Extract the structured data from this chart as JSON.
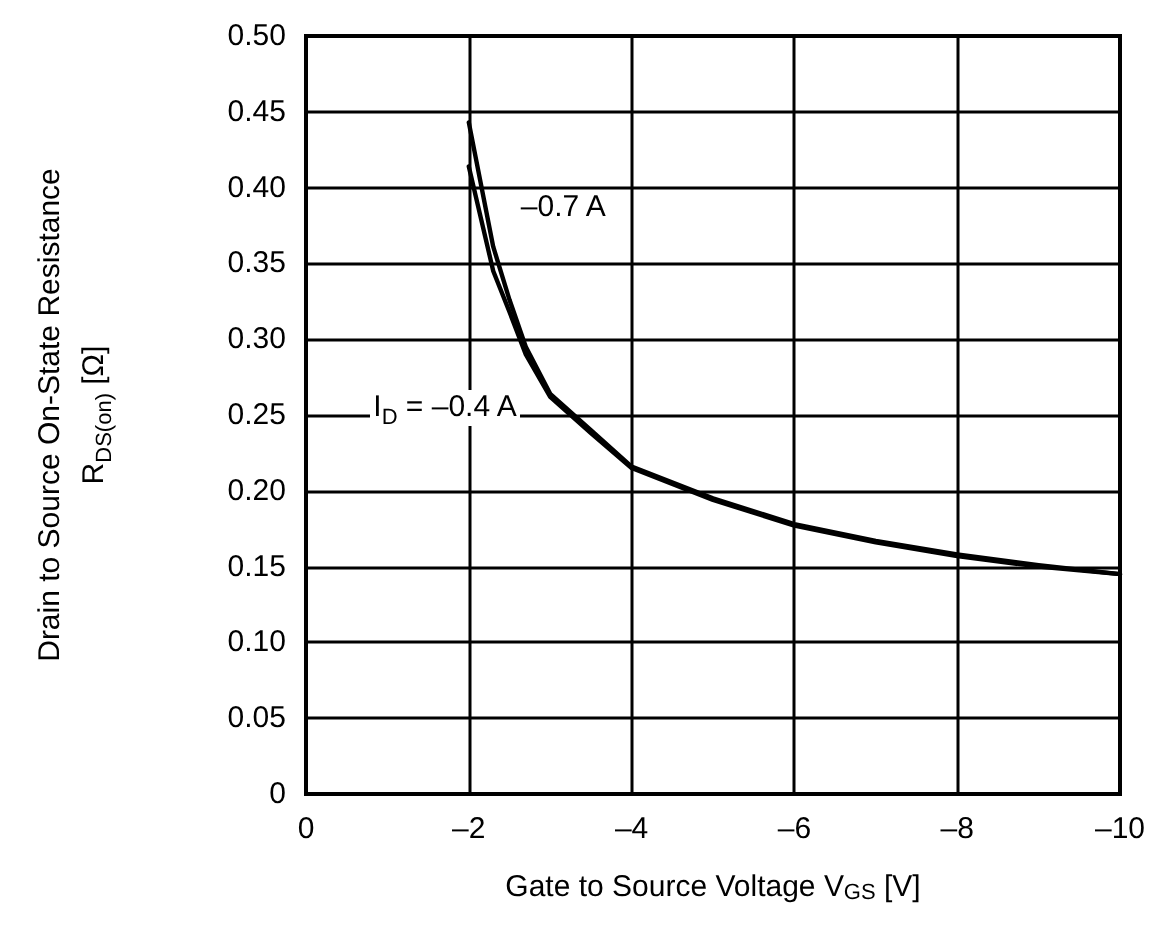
{
  "chart_data": {
    "type": "line",
    "xlabel": "Gate to Source Voltage V$_{GS}$ [V]",
    "ylabel": "Drain to Source On-State Resistance\nR$_{DS(on)}$ [Ω]",
    "series": [
      {
        "name": "–0.7 A",
        "color": "#000000",
        "x": [
          -2,
          -2.3,
          -2.5,
          -2.7,
          -3,
          -3.5,
          -4,
          -5,
          -6,
          -7,
          -8,
          -9,
          -10
        ],
        "values": [
          0.443,
          0.361,
          0.326,
          0.295,
          0.264,
          0.24,
          0.216,
          0.195,
          0.178,
          0.167,
          0.158,
          0.151,
          0.145
        ]
      },
      {
        "name": "I$_{D}$ = –0.4 A",
        "color": "#000000",
        "x": [
          -2,
          -2.3,
          -2.5,
          -2.7,
          -3,
          -3.5,
          -4,
          -5,
          -6,
          -7,
          -8,
          -9,
          -10
        ],
        "values": [
          0.414,
          0.345,
          0.318,
          0.29,
          0.262,
          0.238,
          0.215,
          0.194,
          0.177,
          0.166,
          0.157,
          0.15,
          0.145
        ]
      }
    ],
    "xlim": [
      0,
      -10
    ],
    "xticks": [
      0,
      {
        "value": -2,
        "label": "–2"
      },
      {
        "value": -4,
        "label": "–4"
      },
      {
        "value": -6,
        "label": "–6"
      },
      {
        "value": -8,
        "label": "–8"
      },
      {
        "value": -10,
        "label": "–10"
      }
    ],
    "ylim": [
      0,
      0.5
    ],
    "yticks": [
      0,
      0.05,
      {
        "value": 0.1,
        "label": "0.10"
      },
      0.15,
      {
        "value": 0.2,
        "label": "0.20"
      },
      0.25,
      {
        "value": 0.3,
        "label": "0.30"
      },
      0.35,
      {
        "value": 0.4,
        "label": "0.40"
      },
      0.45,
      {
        "value": 0.5,
        "label": "0.50"
      }
    ],
    "grid": true,
    "marker": "none",
    "line_style": "solid"
  }
}
